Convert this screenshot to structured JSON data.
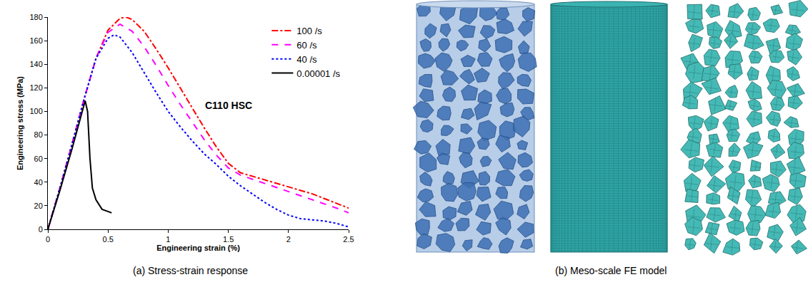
{
  "chart_data": {
    "type": "line",
    "caption": "(a) Stress-strain response",
    "x_label": "Engineering strain (%)",
    "y_label": "Engineering stress (MPa)",
    "annotations": [
      {
        "text": "C110 HSC",
        "x": 1.5,
        "y": 105
      }
    ],
    "xlim": [
      0,
      2.5
    ],
    "xticks": [
      0,
      0.5,
      1,
      1.5,
      2,
      2.5
    ],
    "ylim": [
      0,
      180
    ],
    "yticks": [
      0,
      20,
      40,
      60,
      80,
      100,
      120,
      140,
      160,
      180
    ],
    "grid": false,
    "legend": "top right",
    "series": [
      {
        "name": "100 /s",
        "color": "#ff0000",
        "line_style": "dashdot",
        "x": [
          0,
          0.1,
          0.2,
          0.3,
          0.4,
          0.5,
          0.6,
          0.65,
          0.7,
          0.8,
          0.9,
          1.0,
          1.1,
          1.2,
          1.3,
          1.4,
          1.5,
          1.6,
          1.8,
          2.0,
          2.2,
          2.4,
          2.5
        ],
        "values": [
          0,
          35,
          72,
          110,
          145,
          169,
          179,
          180,
          178,
          168,
          153,
          137,
          120,
          103,
          86,
          70,
          56,
          48,
          42,
          36,
          30,
          22,
          18
        ]
      },
      {
        "name": "60 /s",
        "color": "#ff00ff",
        "line_style": "dash",
        "x": [
          0,
          0.1,
          0.2,
          0.3,
          0.4,
          0.5,
          0.6,
          0.7,
          0.8,
          0.9,
          1.0,
          1.1,
          1.2,
          1.3,
          1.4,
          1.5,
          1.6,
          1.8,
          2.0,
          2.2,
          2.4,
          2.5
        ],
        "values": [
          0,
          35,
          72,
          110,
          145,
          167,
          174,
          168,
          155,
          139,
          122,
          106,
          91,
          76,
          63,
          52,
          46,
          39,
          32,
          25,
          18,
          14
        ]
      },
      {
        "name": "40 /s",
        "color": "#0000ff",
        "line_style": "dot",
        "x": [
          0,
          0.1,
          0.2,
          0.3,
          0.4,
          0.5,
          0.55,
          0.6,
          0.7,
          0.8,
          0.9,
          1.0,
          1.1,
          1.2,
          1.3,
          1.4,
          1.5,
          1.6,
          1.7,
          1.8,
          1.9,
          2.0,
          2.1,
          2.2,
          2.3,
          2.4,
          2.5
        ],
        "values": [
          0,
          35,
          72,
          110,
          145,
          162,
          165,
          163,
          150,
          133,
          116,
          100,
          87,
          75,
          64,
          55,
          45,
          37,
          30,
          23,
          17,
          12,
          9,
          8,
          7,
          5,
          2
        ]
      },
      {
        "name": "0.00001 /s",
        "color": "#000000",
        "line_style": "solid",
        "x": [
          0,
          0.1,
          0.2,
          0.28,
          0.31,
          0.33,
          0.35,
          0.37,
          0.4,
          0.45,
          0.5,
          0.53
        ],
        "values": [
          0,
          33,
          68,
          98,
          109,
          100,
          60,
          35,
          25,
          17,
          15,
          14
        ]
      }
    ]
  },
  "model_panel": {
    "caption": "(b) Meso-scale FE model"
  }
}
